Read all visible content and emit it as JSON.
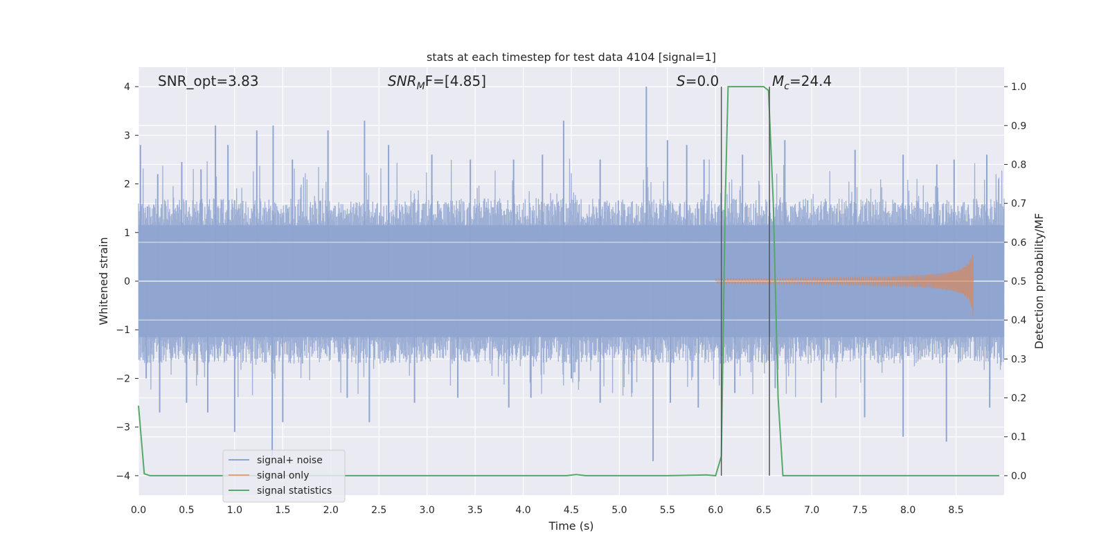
{
  "chart_data": {
    "type": "line",
    "title": "stats at each timestep for test data 4104 [signal=1]",
    "xlabel": "Time (s)",
    "ylabel_left": "Whitened strain",
    "ylabel_right": "Detection probability/MF",
    "xlim": [
      0.0,
      9.0
    ],
    "ylim_left": [
      -4.4,
      4.4
    ],
    "ylim_right": [
      -0.05,
      1.05
    ],
    "x_ticks": [
      "0.0",
      "0.5",
      "1.0",
      "1.5",
      "2.0",
      "2.5",
      "3.0",
      "3.5",
      "4.0",
      "4.5",
      "5.0",
      "5.5",
      "6.0",
      "6.5",
      "7.0",
      "7.5",
      "8.0",
      "8.5"
    ],
    "y_ticks_left": [
      "4",
      "3",
      "2",
      "1",
      "0",
      "−1",
      "−2",
      "−3",
      "−4"
    ],
    "y_ticks_right": [
      "1.0",
      "0.9",
      "0.8",
      "0.7",
      "0.6",
      "0.5",
      "0.4",
      "0.3",
      "0.2",
      "0.1",
      "0.0"
    ],
    "grid": true,
    "legend_placement": "lower-left",
    "annotations": {
      "snr_opt": "SNR_opt=3.83",
      "snr_mf_sym": "SNR",
      "snr_mf_sub": "M",
      "snr_mf_rest": "F=[4.85]",
      "s_sym": "S",
      "s_rest": "=0.0",
      "mc_sym": "M",
      "mc_sub": "c",
      "mc_rest": "=24.4"
    },
    "vertical_lines_x": [
      6.06,
      6.56
    ],
    "series": [
      {
        "name": "signal+ noise",
        "color": "#8fa5cf",
        "axis": "left",
        "description_values": "noise envelope roughly between -1.6 and 1.6 with spikes up to about 4.0 and down to about -3.8",
        "spikes": [
          [
            0.02,
            2.8
          ],
          [
            0.2,
            2.2
          ],
          [
            0.45,
            2.45
          ],
          [
            0.65,
            2.3
          ],
          [
            0.8,
            3.2
          ],
          [
            0.93,
            2.8
          ],
          [
            1.23,
            3.1
          ],
          [
            1.4,
            3.2
          ],
          [
            1.6,
            2.5
          ],
          [
            1.97,
            3.1
          ],
          [
            2.35,
            3.3
          ],
          [
            2.6,
            2.8
          ],
          [
            3.05,
            2.6
          ],
          [
            3.45,
            2.5
          ],
          [
            3.9,
            2.5
          ],
          [
            4.2,
            2.6
          ],
          [
            4.42,
            3.3
          ],
          [
            4.8,
            2.5
          ],
          [
            5.28,
            4.0
          ],
          [
            5.5,
            2.9
          ],
          [
            5.7,
            2.8
          ],
          [
            5.88,
            2.5
          ],
          [
            6.28,
            2.6
          ],
          [
            6.72,
            2.9
          ],
          [
            7.45,
            2.7
          ],
          [
            7.95,
            2.6
          ],
          [
            8.3,
            2.4
          ],
          [
            8.48,
            2.5
          ],
          [
            8.82,
            2.6
          ],
          [
            0.08,
            -2.0
          ],
          [
            0.22,
            -2.7
          ],
          [
            0.5,
            -2.5
          ],
          [
            0.72,
            -2.7
          ],
          [
            1.0,
            -3.1
          ],
          [
            1.39,
            -3.6
          ],
          [
            1.5,
            -2.9
          ],
          [
            2.17,
            -2.4
          ],
          [
            2.4,
            -2.9
          ],
          [
            2.87,
            -2.5
          ],
          [
            3.32,
            -2.4
          ],
          [
            3.85,
            -2.6
          ],
          [
            4.08,
            -2.4
          ],
          [
            4.5,
            -2.0
          ],
          [
            4.8,
            -2.5
          ],
          [
            5.13,
            -2.3
          ],
          [
            5.35,
            -3.7
          ],
          [
            5.53,
            -2.5
          ],
          [
            5.82,
            -2.6
          ],
          [
            6.2,
            -2.3
          ],
          [
            6.62,
            -2.2
          ],
          [
            7.1,
            -2.5
          ],
          [
            7.55,
            -2.8
          ],
          [
            7.95,
            -3.2
          ],
          [
            8.4,
            -3.3
          ],
          [
            8.85,
            -2.6
          ]
        ]
      },
      {
        "name": "signal only",
        "color": "#dd8452",
        "axis": "left",
        "chirp": {
          "start": 6.0,
          "end": 8.68,
          "max_amplitude": 0.8
        }
      },
      {
        "name": "signal statistics",
        "color": "#55a868",
        "axis": "right",
        "points": [
          [
            0.0,
            0.18
          ],
          [
            0.06,
            0.005
          ],
          [
            0.12,
            0.0
          ],
          [
            1.0,
            0.0
          ],
          [
            2.0,
            0.0
          ],
          [
            3.0,
            0.0
          ],
          [
            4.0,
            0.0
          ],
          [
            4.45,
            0.0
          ],
          [
            4.55,
            0.003
          ],
          [
            4.65,
            0.0
          ],
          [
            5.0,
            0.0
          ],
          [
            5.5,
            0.0
          ],
          [
            5.9,
            0.002
          ],
          [
            6.0,
            0.0
          ],
          [
            6.06,
            0.05
          ],
          [
            6.1,
            0.7
          ],
          [
            6.13,
            1.0
          ],
          [
            6.2,
            1.0
          ],
          [
            6.5,
            1.0
          ],
          [
            6.55,
            0.99
          ],
          [
            6.6,
            0.7
          ],
          [
            6.65,
            0.2
          ],
          [
            6.7,
            0.0
          ],
          [
            7.0,
            0.0
          ],
          [
            8.0,
            0.0
          ],
          [
            8.95,
            0.0
          ]
        ]
      }
    ]
  }
}
